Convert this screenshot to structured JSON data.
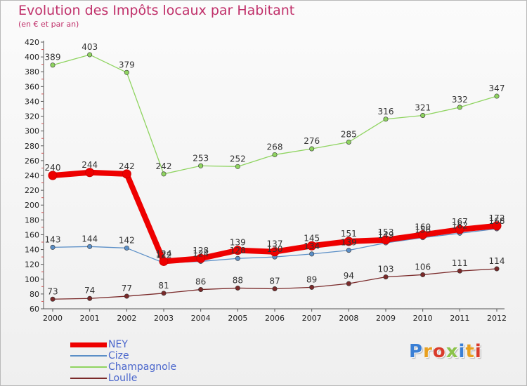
{
  "title": "Evolution des Impôts locaux par Habitant",
  "subtitle": "(en € et par an)",
  "brand": {
    "text": "Proxiti",
    "letter_colors": [
      "#3a7fd5",
      "#e8a020",
      "#d93b2b",
      "#8bc34a",
      "#3a7fd5",
      "#e8a020",
      "#d93b2b"
    ]
  },
  "chart_data": {
    "type": "line",
    "categories": [
      "2000",
      "2001",
      "2002",
      "2003",
      "2004",
      "2005",
      "2006",
      "2007",
      "2008",
      "2009",
      "2010",
      "2011",
      "2012"
    ],
    "ylim": [
      60,
      420
    ],
    "yticks": [
      60,
      80,
      100,
      120,
      140,
      160,
      180,
      200,
      220,
      240,
      260,
      280,
      300,
      320,
      340,
      360,
      380,
      400,
      420
    ],
    "grid": false,
    "legend_position": "bottom-left",
    "series": [
      {
        "name": "NEY",
        "color": "#ee0000",
        "style": "thick",
        "values": [
          240,
          244,
          242,
          124,
          128,
          139,
          137,
          145,
          151,
          153,
          160,
          167,
          172
        ]
      },
      {
        "name": "Cize",
        "color": "#5b8fc7",
        "style": "thin",
        "values": [
          143,
          144,
          142,
          122,
          124,
          128,
          130,
          134,
          139,
          149,
          156,
          162,
          168
        ]
      },
      {
        "name": "Champagnole",
        "color": "#8fd460",
        "style": "thin",
        "values": [
          389,
          403,
          379,
          242,
          253,
          252,
          268,
          276,
          285,
          316,
          321,
          332,
          347
        ]
      },
      {
        "name": "Loulle",
        "color": "#7a2a2a",
        "style": "thin",
        "values": [
          73,
          74,
          77,
          81,
          86,
          88,
          87,
          89,
          94,
          103,
          106,
          111,
          114
        ]
      }
    ],
    "label_order": [
      "Loulle",
      "Cize",
      "NEY",
      "Champagnole"
    ]
  }
}
